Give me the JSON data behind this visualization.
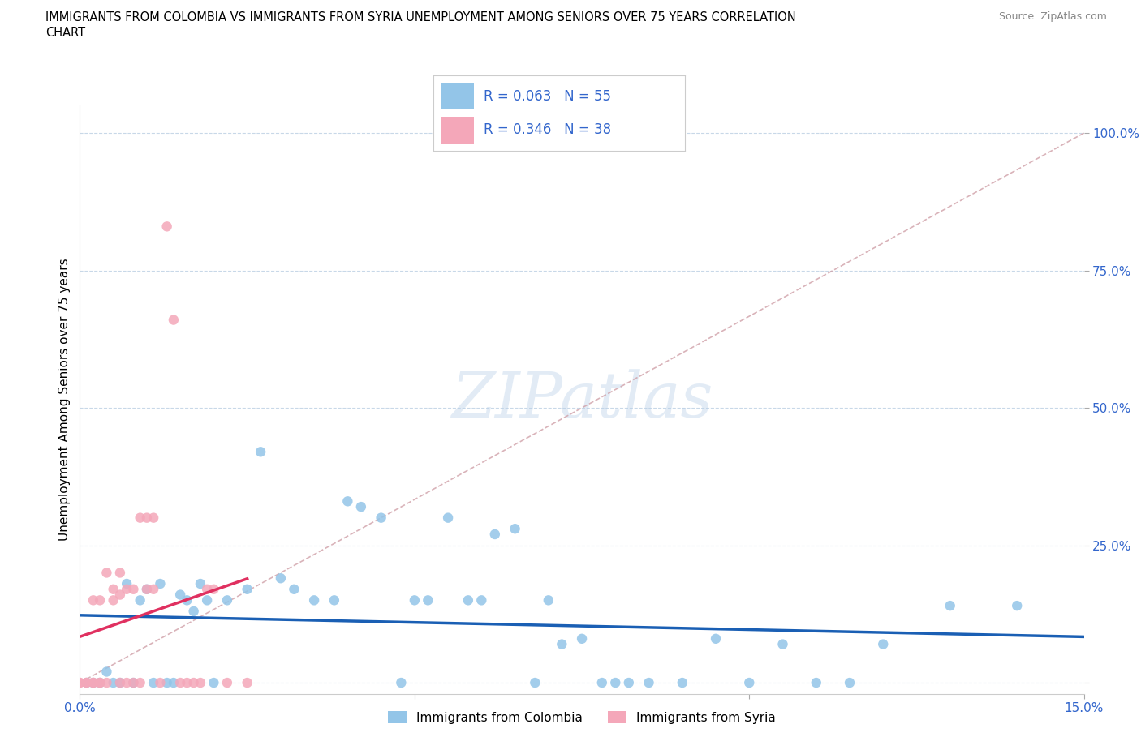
{
  "title_line1": "IMMIGRANTS FROM COLOMBIA VS IMMIGRANTS FROM SYRIA UNEMPLOYMENT AMONG SENIORS OVER 75 YEARS CORRELATION",
  "title_line2": "CHART",
  "source": "Source: ZipAtlas.com",
  "ylabel": "Unemployment Among Seniors over 75 years",
  "yticks": [
    0.0,
    0.25,
    0.5,
    0.75,
    1.0
  ],
  "ytick_labels": [
    "",
    "25.0%",
    "50.0%",
    "75.0%",
    "100.0%"
  ],
  "xticks": [
    0.0,
    0.05,
    0.1,
    0.15
  ],
  "xtick_labels": [
    "0.0%",
    "",
    "",
    "15.0%"
  ],
  "xlim": [
    0.0,
    0.15
  ],
  "ylim": [
    -0.02,
    1.05
  ],
  "watermark": "ZIPatlas",
  "legend_r1": "R = 0.063",
  "legend_n1": "N = 55",
  "legend_r2": "R = 0.346",
  "legend_n2": "N = 38",
  "color_colombia": "#93c5e8",
  "color_syria": "#f4a7b9",
  "trendline_colombia_color": "#1a5fb4",
  "trendline_syria_color": "#e03060",
  "diagonal_color": "#d0a0a8",
  "colombia_x": [
    0.001,
    0.002,
    0.003,
    0.004,
    0.005,
    0.006,
    0.007,
    0.008,
    0.009,
    0.01,
    0.011,
    0.012,
    0.013,
    0.014,
    0.015,
    0.016,
    0.017,
    0.018,
    0.019,
    0.02,
    0.022,
    0.025,
    0.027,
    0.03,
    0.032,
    0.035,
    0.038,
    0.04,
    0.042,
    0.045,
    0.048,
    0.05,
    0.052,
    0.055,
    0.058,
    0.06,
    0.062,
    0.065,
    0.068,
    0.07,
    0.072,
    0.075,
    0.078,
    0.08,
    0.082,
    0.085,
    0.09,
    0.095,
    0.1,
    0.105,
    0.11,
    0.115,
    0.12,
    0.13,
    0.14
  ],
  "colombia_y": [
    0.0,
    0.0,
    0.0,
    0.02,
    0.0,
    0.0,
    0.18,
    0.0,
    0.15,
    0.17,
    0.0,
    0.18,
    0.0,
    0.0,
    0.16,
    0.15,
    0.13,
    0.18,
    0.15,
    0.0,
    0.15,
    0.17,
    0.42,
    0.19,
    0.17,
    0.15,
    0.15,
    0.33,
    0.32,
    0.3,
    0.0,
    0.15,
    0.15,
    0.3,
    0.15,
    0.15,
    0.27,
    0.28,
    0.0,
    0.15,
    0.07,
    0.08,
    0.0,
    0.0,
    0.0,
    0.0,
    0.0,
    0.08,
    0.0,
    0.07,
    0.0,
    0.0,
    0.07,
    0.14,
    0.14
  ],
  "syria_x": [
    0.0,
    0.0,
    0.001,
    0.001,
    0.002,
    0.002,
    0.002,
    0.003,
    0.003,
    0.003,
    0.004,
    0.004,
    0.005,
    0.005,
    0.006,
    0.006,
    0.006,
    0.007,
    0.007,
    0.008,
    0.008,
    0.009,
    0.009,
    0.01,
    0.01,
    0.011,
    0.011,
    0.012,
    0.013,
    0.014,
    0.015,
    0.016,
    0.017,
    0.018,
    0.019,
    0.02,
    0.022,
    0.025
  ],
  "syria_y": [
    0.0,
    0.0,
    0.0,
    0.0,
    0.0,
    0.0,
    0.15,
    0.0,
    0.0,
    0.15,
    0.0,
    0.2,
    0.15,
    0.17,
    0.0,
    0.16,
    0.2,
    0.17,
    0.0,
    0.0,
    0.17,
    0.0,
    0.3,
    0.3,
    0.17,
    0.17,
    0.3,
    0.0,
    0.83,
    0.66,
    0.0,
    0.0,
    0.0,
    0.0,
    0.17,
    0.17,
    0.0,
    0.0
  ]
}
